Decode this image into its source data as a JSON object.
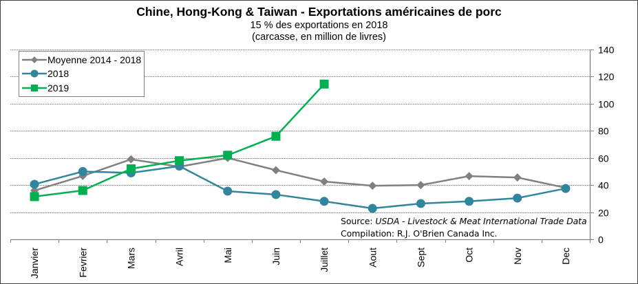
{
  "chart_data": {
    "type": "line",
    "title": "Chine, Hong-Kong & Taiwan - Exportations américaines de porc",
    "subtitle": "15 % des exportations en 2018",
    "subtitle2": "(carcasse, en million de livres)",
    "categories": [
      "Janvier",
      "Fevrier",
      "Mars",
      "Avril",
      "Mai",
      "Juin",
      "Juillet",
      "Aout",
      "Sept",
      "Oct",
      "Nov",
      "Dec"
    ],
    "ylim": [
      0,
      140
    ],
    "yticks": [
      "0",
      "20",
      "40",
      "60",
      "80",
      "100",
      "120",
      "140"
    ],
    "yaxis_position": "right",
    "grid": "horizontal-dotted",
    "legend_position": "top-left",
    "series": [
      {
        "name": "Moyenne 2014 - 2018",
        "color": "#808080",
        "marker": "diamond",
        "values": [
          36,
          46.7,
          59,
          53.5,
          60,
          51,
          42.6,
          39.5,
          40,
          46.6,
          45.6,
          38
        ]
      },
      {
        "name": "2018",
        "color": "#31859c",
        "marker": "circle",
        "values": [
          40.6,
          50,
          49,
          54,
          35.5,
          33,
          28,
          22.8,
          26.4,
          28,
          30.4,
          37.5
        ]
      },
      {
        "name": "2019",
        "color": "#00b050",
        "marker": "square",
        "values": [
          31.5,
          36,
          52,
          58,
          62,
          76,
          114.5,
          null,
          null,
          null,
          null,
          null
        ]
      }
    ]
  },
  "source": {
    "prefix": "Source: ",
    "text": "USDA - Livestock & Meat International Trade Data"
  },
  "compilation": "Compilation: R.J. O'Brien Canada Inc."
}
